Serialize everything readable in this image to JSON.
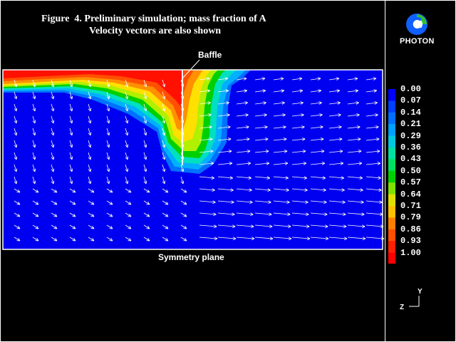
{
  "title": {
    "line1": "Figure  4. Preliminary simulation; mass fraction of A",
    "line2": "Velocity vectors are also shown"
  },
  "labels": {
    "baffle": "Baffle",
    "symmetry": "Symmetry plane"
  },
  "logo": {
    "text": "PHOTON",
    "icon": "photon-logo-icon"
  },
  "legend": {
    "values": [
      "0.00",
      "0.07",
      "0.14",
      "0.21",
      "0.29",
      "0.36",
      "0.43",
      "0.50",
      "0.57",
      "0.64",
      "0.71",
      "0.79",
      "0.86",
      "0.93",
      "1.00"
    ],
    "colors": [
      "#0000ff",
      "#0040ff",
      "#0070ff",
      "#00a0ff",
      "#00c8e0",
      "#00e0a0",
      "#00e060",
      "#00d000",
      "#80e000",
      "#e0e000",
      "#ffc000",
      "#ff8000",
      "#ff5000",
      "#ff2000",
      "#ff0000"
    ]
  },
  "axes": {
    "y": "Y",
    "z": "Z"
  }
}
